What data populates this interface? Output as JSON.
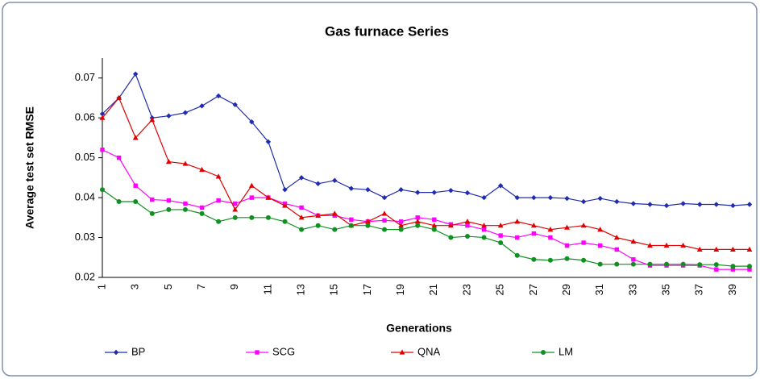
{
  "chart_data": {
    "type": "line",
    "title": "Gas furnace Series",
    "xlabel": "Generations",
    "ylabel": "Average test set RMSE",
    "categories": [
      1,
      null,
      3,
      null,
      5,
      null,
      7,
      null,
      9,
      null,
      11,
      null,
      13,
      null,
      15,
      null,
      17,
      null,
      19,
      null,
      21,
      null,
      23,
      null,
      25,
      null,
      27,
      null,
      29,
      null,
      31,
      null,
      33,
      null,
      35,
      null,
      37,
      null,
      39,
      null
    ],
    "series": [
      {
        "name": "BP",
        "color": "#1f2bb0",
        "marker": "diamond",
        "values": [
          0.061,
          0.065,
          0.071,
          0.06,
          0.0605,
          0.0613,
          0.063,
          0.0655,
          0.0633,
          0.059,
          0.054,
          0.042,
          0.045,
          0.0435,
          0.0443,
          0.0423,
          0.042,
          0.04,
          0.042,
          0.0413,
          0.0413,
          0.0418,
          0.0412,
          0.04,
          0.043,
          0.04,
          0.04,
          0.04,
          0.0398,
          0.039,
          0.0398,
          0.039,
          0.0385,
          0.0383,
          0.038,
          0.0385,
          0.0383,
          0.0383,
          0.038,
          0.0383
        ]
      },
      {
        "name": "SCG",
        "color": "#ff00ff",
        "marker": "square",
        "values": [
          0.052,
          0.05,
          0.043,
          0.0395,
          0.0393,
          0.0385,
          0.0375,
          0.0393,
          0.0385,
          0.04,
          0.04,
          0.0385,
          0.0375,
          0.0355,
          0.0355,
          0.0345,
          0.034,
          0.0343,
          0.034,
          0.035,
          0.0345,
          0.0333,
          0.033,
          0.032,
          0.0305,
          0.03,
          0.031,
          0.03,
          0.028,
          0.0287,
          0.028,
          0.027,
          0.0245,
          0.023,
          0.023,
          0.023,
          0.023,
          0.022,
          0.022,
          0.022
        ]
      },
      {
        "name": "QNA",
        "color": "#e00000",
        "marker": "triangle",
        "values": [
          0.06,
          0.065,
          0.055,
          0.0595,
          0.049,
          0.0485,
          0.047,
          0.0453,
          0.037,
          0.043,
          0.04,
          0.038,
          0.035,
          0.0355,
          0.036,
          0.033,
          0.034,
          0.036,
          0.033,
          0.034,
          0.033,
          0.033,
          0.034,
          0.033,
          0.033,
          0.034,
          0.033,
          0.032,
          0.0325,
          0.033,
          0.032,
          0.03,
          0.029,
          0.028,
          0.028,
          0.028,
          0.027,
          0.027,
          0.027,
          0.027
        ]
      },
      {
        "name": "LM",
        "color": "#109020",
        "marker": "circle",
        "values": [
          0.042,
          0.039,
          0.039,
          0.036,
          0.037,
          0.037,
          0.036,
          0.034,
          0.035,
          0.035,
          0.035,
          0.034,
          0.032,
          0.033,
          0.032,
          0.033,
          0.033,
          0.032,
          0.032,
          0.033,
          0.032,
          0.03,
          0.0303,
          0.03,
          0.0287,
          0.0255,
          0.0245,
          0.0243,
          0.0247,
          0.0243,
          0.0233,
          0.0233,
          0.0233,
          0.0233,
          0.0233,
          0.0233,
          0.0232,
          0.0232,
          0.0228,
          0.0228
        ]
      }
    ],
    "ylim": [
      0.02,
      0.075
    ],
    "yticks": [
      0.02,
      0.03,
      0.04,
      0.05,
      0.06,
      0.07
    ],
    "legend": "bottom"
  }
}
